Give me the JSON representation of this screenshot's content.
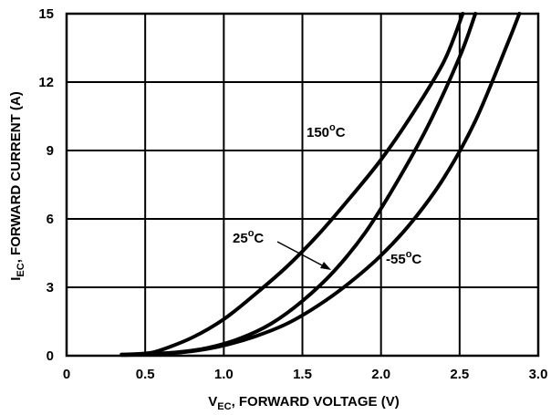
{
  "chart_data": {
    "type": "line",
    "xlabel": {
      "main": "V",
      "sub": "EC",
      "rest": ", FORWARD VOLTAGE (V)"
    },
    "ylabel": {
      "main": "I",
      "sub": "EC",
      "rest": ", FORWARD CURRENT (A)"
    },
    "xlim": [
      0,
      3.0
    ],
    "ylim": [
      0,
      15
    ],
    "xticks": [
      0,
      0.5,
      1.0,
      1.5,
      2.0,
      2.5,
      3.0
    ],
    "xtick_labels": [
      "0",
      "0.5",
      "1.0",
      "1.5",
      "2.0",
      "2.5",
      "3.0"
    ],
    "yticks": [
      0,
      3,
      6,
      9,
      12,
      15
    ],
    "ytick_labels": [
      "0",
      "3",
      "6",
      "9",
      "12",
      "15"
    ],
    "grid": true,
    "series": [
      {
        "name": "150°C",
        "label_main": "150",
        "label_sup": "o",
        "label_rest": "C",
        "x": [
          0.35,
          0.5,
          0.6,
          0.8,
          1.0,
          1.2,
          1.4,
          1.6,
          1.8,
          2.0,
          2.2,
          2.4,
          2.52
        ],
        "y": [
          0.05,
          0.1,
          0.25,
          0.8,
          1.6,
          2.7,
          3.9,
          5.3,
          6.9,
          8.6,
          10.6,
          12.9,
          15
        ]
      },
      {
        "name": "25°C",
        "label_main": "25",
        "label_sup": "o",
        "label_rest": "C",
        "x": [
          0.35,
          0.5,
          0.7,
          0.9,
          1.1,
          1.3,
          1.5,
          1.7,
          1.9,
          2.1,
          2.3,
          2.5,
          2.6
        ],
        "y": [
          0.05,
          0.07,
          0.15,
          0.35,
          0.75,
          1.4,
          2.4,
          3.7,
          5.4,
          7.6,
          10.1,
          13.1,
          15
        ]
      },
      {
        "name": "-55°C",
        "label_main": "-55",
        "label_sup": "o",
        "label_rest": "C",
        "x": [
          0.35,
          0.6,
          0.8,
          1.0,
          1.2,
          1.4,
          1.6,
          1.8,
          2.0,
          2.2,
          2.4,
          2.6,
          2.8,
          2.88
        ],
        "y": [
          0.03,
          0.08,
          0.2,
          0.45,
          0.85,
          1.4,
          2.2,
          3.2,
          4.4,
          5.9,
          7.8,
          10.3,
          13.6,
          15
        ]
      }
    ]
  }
}
